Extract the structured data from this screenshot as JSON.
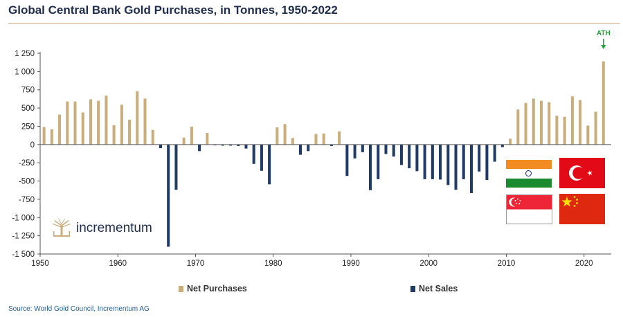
{
  "title": "Global Central Bank Gold Purchases, in Tonnes, 1950-2022",
  "source": "Source: World Gold Council, Incrementum AG",
  "logo_text": "incrementum",
  "annotation": "ATH",
  "legend": {
    "purchases": "Net Purchases",
    "sales": "Net Sales"
  },
  "colors": {
    "purchases": "#c9ad7b",
    "sales": "#1f3b66",
    "title": "#1f2d4e",
    "annotation": "#23a03c"
  },
  "chart_data": {
    "type": "bar",
    "title": "Global Central Bank Gold Purchases, in Tonnes, 1950-2022",
    "xlabel": "",
    "ylabel": "",
    "ylim": [
      -1500,
      1250
    ],
    "yticks": [
      1250,
      1000,
      750,
      500,
      250,
      0,
      -250,
      -500,
      -750,
      -1000,
      -1250,
      -1500
    ],
    "ytick_labels": [
      "1 250",
      "1 000",
      "750",
      "500",
      "250",
      "0",
      "-250",
      "-500",
      "-750",
      "-1 000",
      "-1 250",
      "-1 500"
    ],
    "xticks": [
      1950,
      1960,
      1970,
      1980,
      1990,
      2000,
      2010,
      2020
    ],
    "categories": [
      1950,
      1951,
      1952,
      1953,
      1954,
      1955,
      1956,
      1957,
      1958,
      1959,
      1960,
      1961,
      1962,
      1963,
      1964,
      1965,
      1966,
      1967,
      1968,
      1969,
      1970,
      1971,
      1972,
      1973,
      1974,
      1975,
      1976,
      1977,
      1978,
      1979,
      1980,
      1981,
      1982,
      1983,
      1984,
      1985,
      1986,
      1987,
      1988,
      1989,
      1990,
      1991,
      1992,
      1993,
      1994,
      1995,
      1996,
      1997,
      1998,
      1999,
      2000,
      2001,
      2002,
      2003,
      2004,
      2005,
      2006,
      2007,
      2008,
      2009,
      2010,
      2011,
      2012,
      2013,
      2014,
      2015,
      2016,
      2017,
      2018,
      2019,
      2020,
      2021,
      2022
    ],
    "values": [
      240,
      210,
      410,
      590,
      590,
      440,
      620,
      600,
      670,
      265,
      545,
      340,
      730,
      630,
      200,
      -50,
      -1400,
      -620,
      95,
      245,
      -90,
      160,
      -10,
      -15,
      -15,
      -20,
      -55,
      -265,
      -360,
      -545,
      235,
      280,
      90,
      -140,
      -90,
      145,
      150,
      -20,
      180,
      -430,
      -190,
      -105,
      -625,
      -475,
      -130,
      -165,
      -280,
      -325,
      -365,
      -475,
      -475,
      -480,
      -555,
      -620,
      -475,
      -665,
      -370,
      -485,
      -235,
      -35,
      80,
      480,
      570,
      630,
      600,
      580,
      395,
      380,
      660,
      610,
      260,
      450,
      1140
    ],
    "series": [
      {
        "name": "Net Purchases",
        "color": "#c9ad7b",
        "rule": "value >= 0"
      },
      {
        "name": "Net Sales",
        "color": "#1f3b66",
        "rule": "value < 0"
      }
    ],
    "legend_position": "bottom",
    "grid": false
  }
}
